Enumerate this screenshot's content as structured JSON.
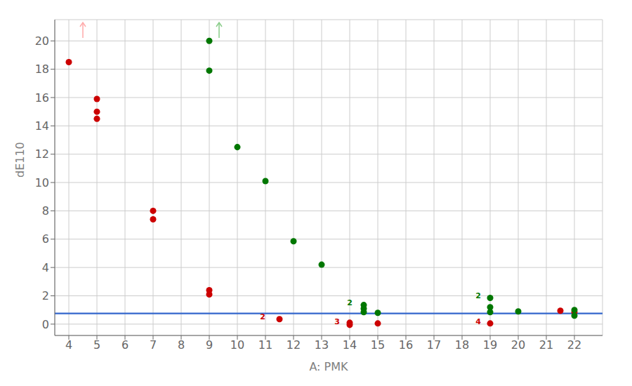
{
  "chart_data": {
    "type": "scatter",
    "xlabel": "A: PMK",
    "ylabel": "dE110",
    "xlim": [
      3.5,
      23.0
    ],
    "ylim": [
      -0.8,
      21.5
    ],
    "xticks": [
      4,
      5,
      6,
      7,
      8,
      9,
      10,
      11,
      12,
      13,
      14,
      15,
      16,
      17,
      18,
      19,
      20,
      21,
      22
    ],
    "yticks": [
      0,
      2,
      4,
      6,
      8,
      10,
      12,
      14,
      16,
      18,
      20
    ],
    "grid": true,
    "series": [
      {
        "color": "#cc0000",
        "x": [
          4.0,
          5.0,
          5.0,
          5.0,
          7.0,
          7.0,
          9.0,
          9.0,
          11.5,
          14.0,
          14.0,
          15.0,
          19.0,
          21.5,
          22.0
        ],
        "values": [
          18.5,
          15.9,
          15.0,
          14.5,
          8.0,
          7.4,
          2.4,
          2.1,
          0.35,
          0.1,
          -0.05,
          0.05,
          0.05,
          0.95,
          0.85
        ]
      },
      {
        "color": "#007700",
        "x": [
          9.0,
          9.0,
          10.0,
          11.0,
          12.0,
          13.0,
          14.5,
          14.5,
          14.5,
          15.0,
          19.0,
          19.0,
          19.0,
          20.0,
          22.0,
          22.0
        ],
        "values": [
          20.0,
          17.9,
          12.5,
          10.1,
          5.85,
          4.2,
          1.35,
          1.1,
          0.85,
          0.8,
          1.85,
          1.2,
          0.85,
          0.9,
          1.0,
          0.6
        ]
      }
    ],
    "hline": {
      "y": 0.75,
      "color": "#3366cc"
    },
    "annotations": [
      {
        "x": 11.05,
        "y": 0.52,
        "text": "2",
        "color": "#cc0000"
      },
      {
        "x": 13.7,
        "y": 0.18,
        "text": "3",
        "color": "#cc0000"
      },
      {
        "x": 18.72,
        "y": 0.18,
        "text": "4",
        "color": "#cc0000"
      },
      {
        "x": 14.15,
        "y": 1.5,
        "text": "2",
        "color": "#007700"
      },
      {
        "x": 18.72,
        "y": 2.0,
        "text": "2",
        "color": "#007700"
      }
    ],
    "arrows": [
      {
        "x": 4.5,
        "color": "#ffaaaa"
      },
      {
        "x": 9.35,
        "color": "#88cc88"
      }
    ]
  }
}
